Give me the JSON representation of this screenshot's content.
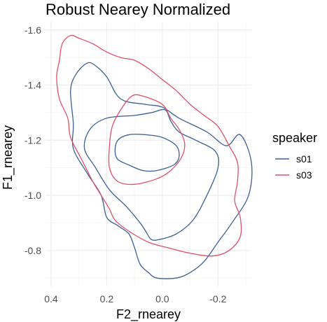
{
  "chart_data": {
    "type": "contour",
    "title": "Robust Nearey Normalized",
    "xlabel": "F2_rnearey",
    "ylabel": "F1_rnearey",
    "x_reversed": true,
    "y_reversed": true,
    "xlim": [
      0.42,
      -0.32
    ],
    "ylim": [
      -1.63,
      -0.67
    ],
    "x_ticks": [
      0.4,
      0.2,
      0.0,
      -0.2
    ],
    "x_tick_labels": [
      "0.4",
      "0.2",
      "0.0",
      "-0.2"
    ],
    "y_ticks": [
      -1.6,
      -1.4,
      -1.2,
      -1.0,
      -0.8
    ],
    "y_tick_labels": [
      "-1.6",
      "-1.4",
      "-1.2",
      "-1.0",
      "-0.8"
    ],
    "grid": true,
    "legend": {
      "title": "speaker",
      "position": "right",
      "entries": [
        {
          "name": "s01",
          "color": "#3b6096"
        },
        {
          "name": "s03",
          "color": "#e0506a"
        }
      ]
    },
    "series": [
      {
        "name": "s01",
        "color": "#3b6096",
        "levels": [
          [
            [
              0.27,
              -1.48
            ],
            [
              0.24,
              -1.47
            ],
            [
              0.2,
              -1.43
            ],
            [
              0.15,
              -1.35
            ],
            [
              0.06,
              -1.33
            ],
            [
              0.0,
              -1.32
            ],
            [
              -0.06,
              -1.28
            ],
            [
              -0.16,
              -1.23
            ],
            [
              -0.23,
              -1.18
            ],
            [
              -0.28,
              -1.22
            ],
            [
              -0.32,
              -1.12
            ],
            [
              -0.31,
              -1.0
            ],
            [
              -0.25,
              -0.9
            ],
            [
              -0.2,
              -0.83
            ],
            [
              -0.15,
              -0.76
            ],
            [
              -0.1,
              -0.72
            ],
            [
              -0.05,
              -0.7
            ],
            [
              0.02,
              -0.7
            ],
            [
              0.05,
              -0.72
            ],
            [
              0.08,
              -0.75
            ],
            [
              0.1,
              -0.81
            ],
            [
              0.12,
              -0.86
            ],
            [
              0.16,
              -0.89
            ],
            [
              0.2,
              -0.92
            ],
            [
              0.22,
              -1.0
            ],
            [
              0.27,
              -1.08
            ],
            [
              0.32,
              -1.17
            ],
            [
              0.32,
              -1.26
            ],
            [
              0.33,
              -1.38
            ],
            [
              0.31,
              -1.44
            ],
            [
              0.27,
              -1.48
            ]
          ],
          [
            [
              0.26,
              -1.24
            ],
            [
              0.2,
              -1.28
            ],
            [
              0.1,
              -1.29
            ],
            [
              0.04,
              -1.3
            ],
            [
              -0.01,
              -1.31
            ],
            [
              -0.03,
              -1.27
            ],
            [
              -0.06,
              -1.23
            ],
            [
              -0.12,
              -1.2
            ],
            [
              -0.19,
              -1.16
            ],
            [
              -0.2,
              -1.1
            ],
            [
              -0.16,
              -1.0
            ],
            [
              -0.11,
              -0.91
            ],
            [
              -0.05,
              -0.86
            ],
            [
              0.01,
              -0.84
            ],
            [
              0.04,
              -0.84
            ],
            [
              0.06,
              -0.87
            ],
            [
              0.08,
              -0.9
            ],
            [
              0.13,
              -0.96
            ],
            [
              0.19,
              -1.02
            ],
            [
              0.24,
              -1.1
            ],
            [
              0.28,
              -1.17
            ],
            [
              0.26,
              -1.24
            ]
          ],
          [
            [
              0.16,
              -1.2
            ],
            [
              0.12,
              -1.22
            ],
            [
              0.06,
              -1.22
            ],
            [
              0.0,
              -1.21
            ],
            [
              -0.05,
              -1.18
            ],
            [
              -0.06,
              -1.14
            ],
            [
              -0.04,
              -1.11
            ],
            [
              0.02,
              -1.09
            ],
            [
              0.07,
              -1.09
            ],
            [
              0.12,
              -1.11
            ],
            [
              0.16,
              -1.13
            ],
            [
              0.17,
              -1.16
            ],
            [
              0.16,
              -1.2
            ]
          ]
        ]
      },
      {
        "name": "s03",
        "color": "#e0506a",
        "levels": [
          [
            [
              0.33,
              -1.58
            ],
            [
              0.3,
              -1.57
            ],
            [
              0.25,
              -1.55
            ],
            [
              0.2,
              -1.52
            ],
            [
              0.15,
              -1.5
            ],
            [
              0.1,
              -1.49
            ],
            [
              0.05,
              -1.46
            ],
            [
              0.0,
              -1.42
            ],
            [
              -0.05,
              -1.38
            ],
            [
              -0.1,
              -1.33
            ],
            [
              -0.15,
              -1.29
            ],
            [
              -0.2,
              -1.25
            ],
            [
              -0.24,
              -1.18
            ],
            [
              -0.27,
              -1.12
            ],
            [
              -0.27,
              -1.05
            ],
            [
              -0.26,
              -0.98
            ],
            [
              -0.28,
              -0.92
            ],
            [
              -0.28,
              -0.85
            ],
            [
              -0.24,
              -0.8
            ],
            [
              -0.18,
              -0.78
            ],
            [
              -0.1,
              -0.79
            ],
            [
              -0.02,
              -0.81
            ],
            [
              0.05,
              -0.83
            ],
            [
              0.12,
              -0.87
            ],
            [
              0.17,
              -0.91
            ],
            [
              0.19,
              -0.95
            ],
            [
              0.22,
              -1.0
            ],
            [
              0.25,
              -1.05
            ],
            [
              0.29,
              -1.13
            ],
            [
              0.33,
              -1.21
            ],
            [
              0.34,
              -1.28
            ],
            [
              0.37,
              -1.35
            ],
            [
              0.38,
              -1.43
            ],
            [
              0.37,
              -1.49
            ],
            [
              0.36,
              -1.55
            ],
            [
              0.33,
              -1.58
            ]
          ],
          [
            [
              0.11,
              -1.36
            ],
            [
              0.07,
              -1.36
            ],
            [
              0.0,
              -1.33
            ],
            [
              -0.03,
              -1.28
            ],
            [
              -0.06,
              -1.24
            ],
            [
              -0.08,
              -1.19
            ],
            [
              -0.07,
              -1.14
            ],
            [
              -0.03,
              -1.09
            ],
            [
              0.02,
              -1.06
            ],
            [
              0.1,
              -1.04
            ],
            [
              0.16,
              -1.05
            ],
            [
              0.19,
              -1.1
            ],
            [
              0.19,
              -1.18
            ],
            [
              0.18,
              -1.25
            ],
            [
              0.15,
              -1.31
            ],
            [
              0.11,
              -1.36
            ]
          ]
        ]
      }
    ]
  }
}
